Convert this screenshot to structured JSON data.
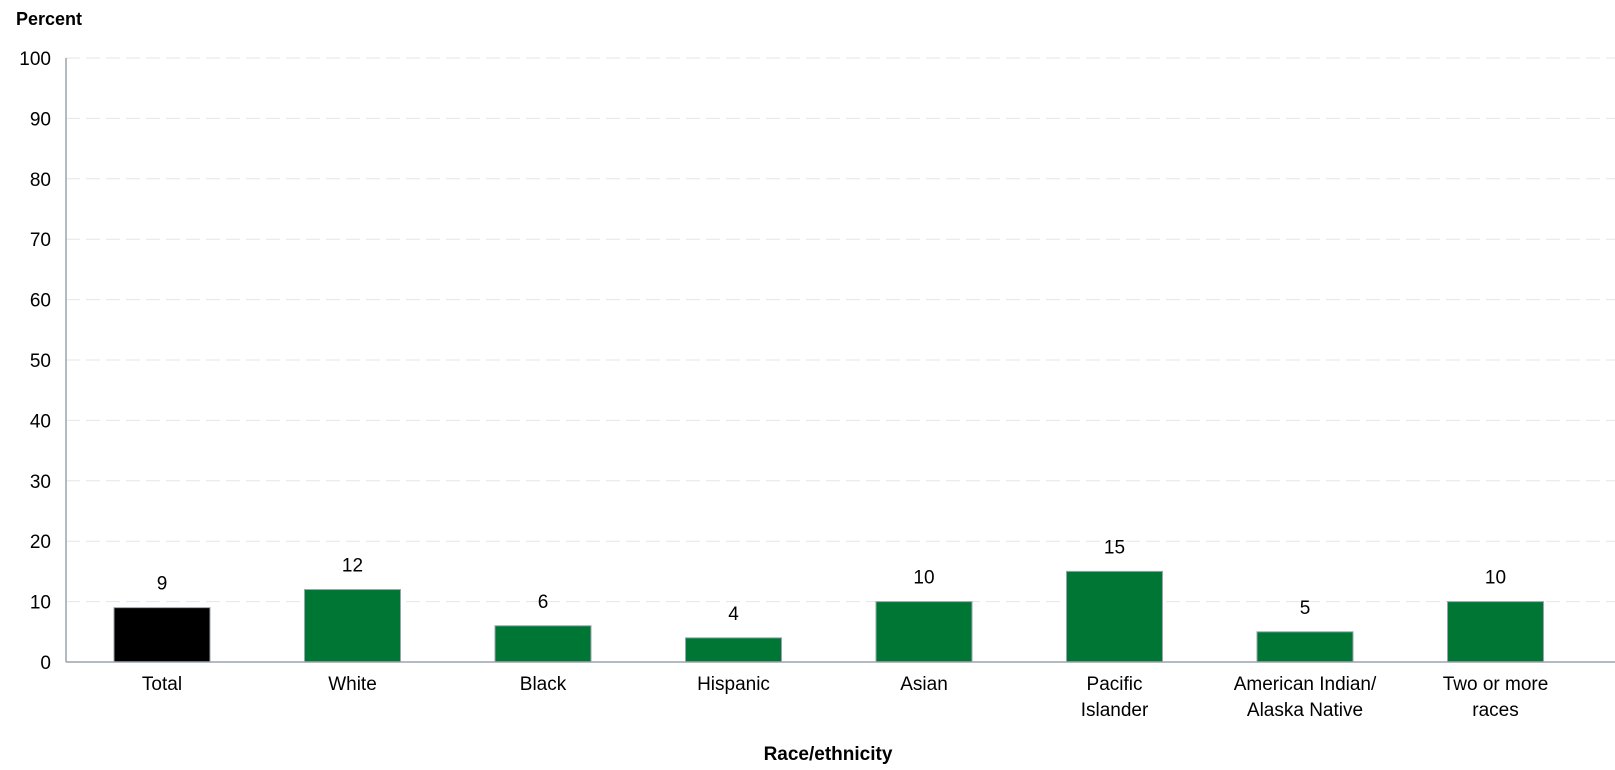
{
  "chart_data": {
    "type": "bar",
    "ylabel": "Percent",
    "xlabel": "Race/ethnicity",
    "ylim": [
      0,
      100
    ],
    "yticks": [
      0,
      10,
      20,
      30,
      40,
      50,
      60,
      70,
      80,
      90,
      100
    ],
    "grid": true,
    "categories": [
      [
        "Total"
      ],
      [
        "White"
      ],
      [
        "Black"
      ],
      [
        "Hispanic"
      ],
      [
        "Asian"
      ],
      [
        "Pacific",
        "Islander"
      ],
      [
        "American Indian/",
        "Alaska Native"
      ],
      [
        "Two or more",
        "races"
      ]
    ],
    "values": [
      9,
      12,
      6,
      4,
      10,
      15,
      5,
      10
    ],
    "data_labels": [
      "9",
      "12",
      "6",
      "4",
      "10",
      "15",
      "5",
      "10"
    ],
    "bar_colors": [
      "#000000",
      "#007635",
      "#007635",
      "#007635",
      "#007635",
      "#007635",
      "#007635",
      "#007635"
    ],
    "bar_outline": "#9aa3ad",
    "axis_color": "#9aa3ad",
    "grid_color": "#e6e6e6"
  }
}
